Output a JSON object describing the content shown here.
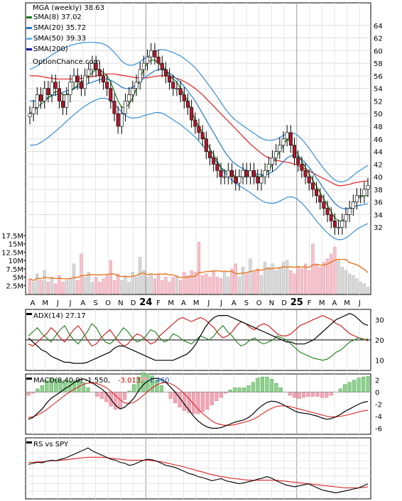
{
  "chart_data": [
    {
      "type": "line",
      "title": "MGA (weekly) 38.63",
      "source_text": "OptionChance.com",
      "legend": [
        {
          "label": "SMA(8) 37.02",
          "color": "#1a7a1a"
        },
        {
          "label": "SMA(20) 35.72",
          "color": "#1f78c8"
        },
        {
          "label": "SMA(50) 39.33",
          "color": "#66b8f0"
        },
        {
          "label": "SMA(200)",
          "color": "#1a1aa0"
        }
      ],
      "ylim": [
        30,
        66
      ],
      "y_ticks": [
        32,
        34,
        36,
        38,
        40,
        42,
        44,
        46,
        48,
        50,
        52,
        54,
        56,
        58,
        60,
        62,
        64
      ],
      "volume_ylim": [
        0,
        17500000
      ],
      "volume_ticks": [
        "2.5M",
        "5M",
        "7.5M",
        "10M",
        "12.5M",
        "15M",
        "17.5M"
      ],
      "x_month_labels": [
        "A",
        "M",
        "J",
        "J",
        "A",
        "S",
        "O",
        "N",
        "D",
        "24",
        "F",
        "M",
        "A",
        "M",
        "J",
        "J",
        "A",
        "S",
        "O",
        "N",
        "D",
        "25",
        "F",
        "M",
        "A",
        "M",
        "J"
      ],
      "price_series": [
        50,
        51,
        53,
        52,
        54,
        53,
        55,
        54,
        52,
        51,
        53,
        55,
        56,
        55,
        54,
        56,
        57,
        58,
        57,
        56,
        55,
        54,
        52,
        50,
        48,
        50,
        52,
        53,
        54,
        55,
        57,
        58,
        59,
        60,
        59,
        58,
        57,
        56,
        55,
        54,
        54,
        53,
        52,
        51,
        49,
        48,
        47,
        46,
        44,
        43,
        42,
        41,
        40,
        40,
        41,
        40,
        39,
        40,
        41,
        40,
        41,
        40,
        39,
        40,
        41,
        42,
        43,
        44,
        45,
        46,
        47,
        45,
        43,
        42,
        41,
        40,
        39,
        38,
        37,
        36,
        35,
        34,
        33,
        32,
        32,
        33,
        34,
        35,
        36,
        37,
        37,
        38,
        38.63
      ],
      "sma8_series": [
        50,
        50.5,
        51,
        51.5,
        52,
        52.5,
        53,
        53.5,
        53.5,
        53,
        53,
        53.5,
        54,
        54.5,
        55,
        55.5,
        56,
        56.5,
        57,
        57,
        56.5,
        56,
        55,
        53.5,
        52,
        51,
        51,
        51.5,
        52.5,
        54,
        55.5,
        57,
        58,
        58.5,
        58.5,
        58,
        57.5,
        57,
        56,
        55.5,
        55,
        54,
        53,
        52,
        50.5,
        49,
        48,
        47,
        45.5,
        44.5,
        43.5,
        42.5,
        41.5,
        41,
        40.5,
        40.5,
        40,
        40,
        40,
        40,
        40.5,
        40.5,
        40,
        40,
        40.5,
        41,
        42,
        43,
        44,
        45,
        46,
        45.5,
        44.5,
        43.5,
        42.5,
        41.5,
        40.5,
        39.5,
        38.5,
        37.5,
        36.5,
        35.5,
        34.5,
        33.5,
        33,
        33,
        33.5,
        34.5,
        35.5,
        36.5,
        36.8,
        37,
        37.02
      ],
      "sma20_series": [
        52,
        52,
        52,
        52.2,
        52.4,
        52.6,
        52.8,
        53,
        53.2,
        53.4,
        53.6,
        53.8,
        54,
        54.2,
        54.4,
        54.6,
        54.8,
        55,
        55.2,
        55.4,
        55.5,
        55.5,
        55.3,
        55,
        54.6,
        54.2,
        54,
        54,
        54.2,
        54.6,
        55,
        55.6,
        56,
        56.4,
        56.8,
        57,
        57,
        56.8,
        56.4,
        56,
        55.5,
        55,
        54.3,
        53.6,
        52.8,
        52,
        51,
        50,
        49,
        48,
        47,
        46,
        45,
        44,
        43.2,
        42.5,
        42,
        41.6,
        41.3,
        41,
        40.8,
        40.6,
        40.4,
        40.3,
        40.3,
        40.5,
        40.8,
        41.2,
        41.8,
        42.4,
        43,
        43.3,
        43.4,
        43.2,
        42.8,
        42.2,
        41.5,
        40.7,
        39.8,
        39,
        38.1,
        37.3,
        36.5,
        35.8,
        35.3,
        35,
        34.9,
        35,
        35.2,
        35.4,
        35.5,
        35.6,
        35.72
      ],
      "sma50_series": [
        56,
        56,
        56,
        55.9,
        55.8,
        55.7,
        55.6,
        55.5,
        55.5,
        55.5,
        55.5,
        55.5,
        55.5,
        55.5,
        55.6,
        55.7,
        55.8,
        55.9,
        56,
        56.1,
        56.2,
        56.3,
        56.3,
        56.3,
        56.2,
        56.1,
        56,
        55.9,
        55.8,
        55.7,
        55.7,
        55.7,
        55.7,
        55.8,
        55.9,
        56,
        56,
        56,
        55.9,
        55.8,
        55.6,
        55.4,
        55.1,
        54.8,
        54.4,
        54,
        53.5,
        53,
        52.4,
        51.8,
        51.2,
        50.6,
        50,
        49.4,
        48.8,
        48.2,
        47.6,
        47,
        46.4,
        45.8,
        45.2,
        44.7,
        44.2,
        43.7,
        43.3,
        43,
        42.8,
        42.6,
        42.5,
        42.4,
        42.3,
        42.2,
        42,
        41.8,
        41.5,
        41.2,
        40.9,
        40.6,
        40.3,
        40,
        39.7,
        39.4,
        39.1,
        38.8,
        38.6,
        38.6,
        38.7,
        38.8,
        39,
        39.1,
        39.2,
        39.3,
        39.33
      ],
      "volume_series": [
        4.5,
        3.5,
        6,
        4,
        7,
        3.5,
        5,
        3,
        5.5,
        3.5,
        4,
        4.5,
        9,
        4,
        12,
        5,
        6.5,
        3.5,
        5,
        3.5,
        4.5,
        5.5,
        10,
        4,
        6,
        4,
        5.5,
        3.5,
        6.5,
        5,
        11,
        7,
        5,
        6,
        4.5,
        6,
        4,
        5,
        3.5,
        5,
        5.5,
        4,
        6.5,
        5.5,
        7,
        6.5,
        15.5,
        5.5,
        6,
        5,
        7,
        5,
        4.5,
        6.5,
        5,
        7.5,
        9,
        5,
        8,
        6,
        10.5,
        6.5,
        7.5,
        5.5,
        9.5,
        8,
        9,
        7,
        8,
        9.5,
        10,
        7,
        6,
        8,
        7.5,
        9,
        7,
        15,
        9,
        8,
        9.5,
        10.5,
        12,
        14,
        10,
        8,
        7,
        6,
        5.5,
        4.5,
        3.5,
        3,
        2
      ]
    },
    {
      "type": "line",
      "title": "ADX(14) 27.17",
      "ylim": [
        5,
        35
      ],
      "y_ticks": [
        10,
        20,
        30
      ],
      "reference_line": 20,
      "adx_series": [
        21,
        19,
        17,
        15,
        14,
        12,
        11,
        10,
        9,
        9,
        8.5,
        8.5,
        8.5,
        9,
        10,
        11,
        12,
        13,
        14,
        16,
        17,
        17,
        16,
        15,
        14,
        13,
        12,
        11,
        10,
        10,
        10,
        10,
        10,
        11,
        12,
        13,
        15,
        18,
        22,
        26,
        29,
        31,
        32,
        32,
        32,
        31,
        30,
        29,
        28,
        27,
        26,
        25,
        24,
        23,
        22,
        21,
        20,
        19,
        19,
        18,
        18,
        18,
        19,
        20,
        22,
        24,
        26,
        28,
        30,
        31,
        32,
        33,
        32,
        30,
        28,
        27.17
      ],
      "plus_di_series": [
        22,
        24,
        26,
        23,
        21,
        19,
        22,
        25,
        27,
        23,
        20,
        18,
        21,
        24,
        28,
        26,
        22,
        19,
        18,
        20,
        23,
        26,
        24,
        21,
        19,
        20,
        22,
        25,
        24,
        21,
        19,
        20,
        23,
        22,
        20,
        19,
        18,
        20,
        22,
        21,
        20,
        22,
        25,
        27,
        24,
        22,
        19,
        17,
        18,
        20,
        21,
        19,
        18,
        19,
        20,
        22,
        21,
        20,
        18,
        16,
        14,
        13,
        12,
        11,
        10.5,
        10,
        10.5,
        12,
        14,
        15,
        17,
        19,
        20,
        21,
        20,
        20.5
      ],
      "minus_di_series": [
        18,
        17,
        19,
        21,
        23,
        26,
        24,
        21,
        19,
        22,
        25,
        27,
        24,
        20,
        17,
        18,
        21,
        23,
        25,
        22,
        19,
        17,
        18,
        21,
        23,
        22,
        20,
        18,
        19,
        22,
        24,
        26,
        28,
        30,
        31,
        30,
        29,
        30,
        31,
        30,
        28,
        26,
        23,
        21,
        22,
        24,
        27,
        29,
        28,
        26,
        25,
        27,
        28,
        27,
        25,
        23,
        22,
        22,
        23,
        25,
        27,
        28,
        29,
        30,
        31,
        32,
        31,
        30,
        28,
        27,
        25,
        23,
        22,
        21,
        20.5,
        19.5
      ]
    },
    {
      "type": "line",
      "title": "MACD(8,40,9) -1.550,",
      "value_labels": [
        {
          "text": "-3.013,",
          "color": "#cc0000"
        },
        {
          "text": "1.460",
          "color": "#1f5fbf"
        }
      ],
      "ylim": [
        -7,
        3
      ],
      "y_ticks": [
        2,
        0,
        -2,
        -4,
        -6
      ],
      "macd_series": [
        -4.5,
        -4.2,
        -3.5,
        -2.8,
        -1.8,
        -1,
        -0.5,
        0,
        0.6,
        1,
        1.6,
        2,
        2.2,
        1.9,
        1.5,
        1,
        0.5,
        -0.2,
        -1.2,
        -2.2,
        -2.8,
        -2.5,
        -1.8,
        -1,
        0.2,
        1.2,
        1.8,
        2.2,
        2.3,
        2.1,
        1.6,
        0.8,
        0,
        -1,
        -2,
        -3,
        -4,
        -4.8,
        -5.4,
        -5.8,
        -6,
        -6,
        -5.9,
        -5.6,
        -5.3,
        -5,
        -4.8,
        -4.6,
        -4.2,
        -3.6,
        -2.8,
        -2.2,
        -1.7,
        -1.5,
        -1.6,
        -1.9,
        -2.3,
        -2.7,
        -3.1,
        -3.4,
        -3.5,
        -3.6,
        -3.8,
        -4,
        -4.3,
        -4.5,
        -4.4,
        -4.1,
        -3.7,
        -3.2,
        -2.8,
        -2.4,
        -2,
        -1.7,
        -1.55
      ],
      "signal_series": [
        -4.2,
        -4.1,
        -3.8,
        -3.4,
        -2.9,
        -2.3,
        -1.7,
        -1.1,
        -0.5,
        0,
        0.5,
        0.9,
        1.3,
        1.5,
        1.5,
        1.4,
        1.1,
        0.7,
        0.1,
        -0.6,
        -1.3,
        -1.8,
        -1.9,
        -1.7,
        -1.2,
        -0.6,
        0.1,
        0.7,
        1.2,
        1.5,
        1.6,
        1.4,
        1,
        0.4,
        -0.3,
        -1.1,
        -2,
        -2.8,
        -3.6,
        -4.2,
        -4.8,
        -5.2,
        -5.4,
        -5.5,
        -5.5,
        -5.4,
        -5.2,
        -5,
        -4.8,
        -4.5,
        -4.1,
        -3.6,
        -3.1,
        -2.7,
        -2.4,
        -2.3,
        -2.3,
        -2.4,
        -2.6,
        -2.8,
        -3,
        -3.2,
        -3.4,
        -3.6,
        -3.8,
        -4,
        -4.1,
        -4.1,
        -4,
        -3.9,
        -3.7,
        -3.5,
        -3.3,
        -3.1,
        -3.013
      ]
    },
    {
      "type": "line",
      "title": "RS vs SPY",
      "rs_series": [
        0.62,
        0.64,
        0.66,
        0.65,
        0.68,
        0.7,
        0.69,
        0.72,
        0.74,
        0.78,
        0.82,
        0.86,
        0.9,
        0.94,
        0.88,
        0.84,
        0.8,
        0.76,
        0.72,
        0.7,
        0.66,
        0.64,
        0.6,
        0.62,
        0.66,
        0.7,
        0.72,
        0.71,
        0.68,
        0.64,
        0.6,
        0.58,
        0.56,
        0.52,
        0.48,
        0.44,
        0.42,
        0.38,
        0.36,
        0.33,
        0.3,
        0.32,
        0.34,
        0.3,
        0.28,
        0.26,
        0.24,
        0.26,
        0.28,
        0.3,
        0.33,
        0.35,
        0.38,
        0.35,
        0.3,
        0.26,
        0.22,
        0.2,
        0.18,
        0.2,
        0.22,
        0.24,
        0.2,
        0.16,
        0.12,
        0.1,
        0.08,
        0.06,
        0.08,
        0.1,
        0.12,
        0.14,
        0.16,
        0.2,
        0.24
      ],
      "rs_ma_series": [
        0.66,
        0.66,
        0.67,
        0.67,
        0.68,
        0.69,
        0.69,
        0.7,
        0.71,
        0.72,
        0.73,
        0.74,
        0.75,
        0.76,
        0.76,
        0.76,
        0.76,
        0.75,
        0.74,
        0.73,
        0.72,
        0.71,
        0.7,
        0.7,
        0.7,
        0.7,
        0.7,
        0.69,
        0.68,
        0.67,
        0.65,
        0.63,
        0.61,
        0.59,
        0.57,
        0.54,
        0.52,
        0.49,
        0.47,
        0.44,
        0.42,
        0.4,
        0.38,
        0.37,
        0.35,
        0.34,
        0.33,
        0.32,
        0.31,
        0.31,
        0.31,
        0.31,
        0.31,
        0.31,
        0.31,
        0.3,
        0.29,
        0.28,
        0.27,
        0.26,
        0.25,
        0.24,
        0.23,
        0.22,
        0.21,
        0.2,
        0.19,
        0.18,
        0.17,
        0.16,
        0.16,
        0.16,
        0.16,
        0.17,
        0.18
      ]
    }
  ]
}
